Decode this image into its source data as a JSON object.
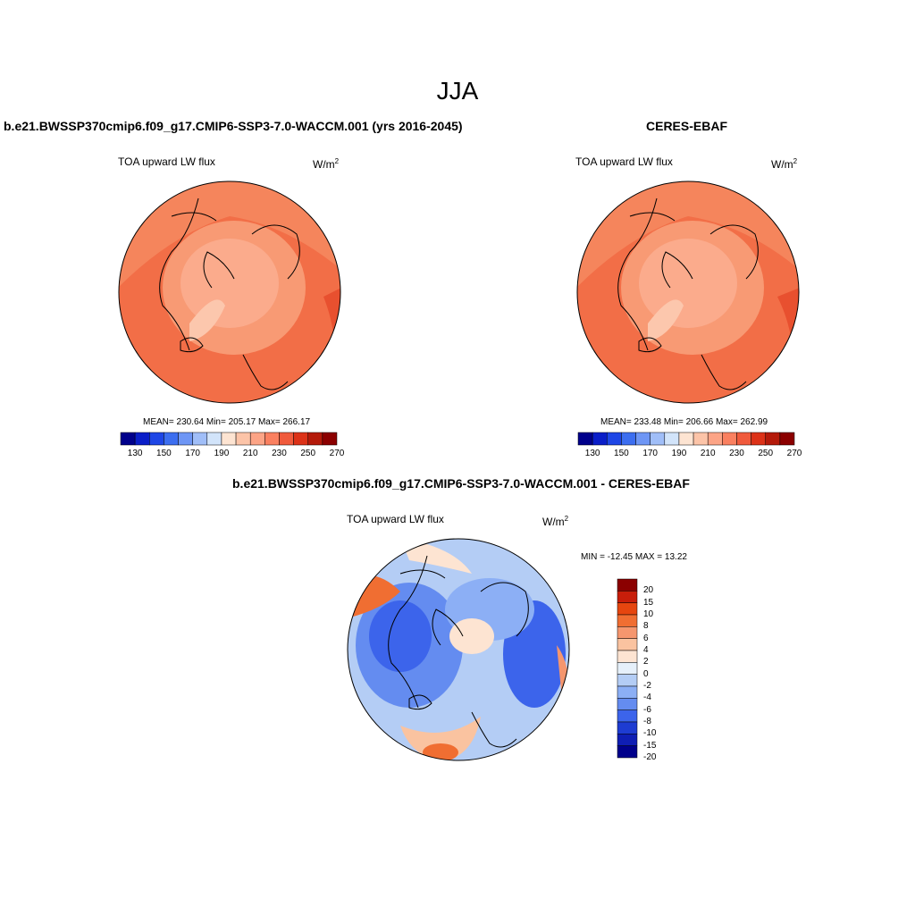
{
  "title": "JJA",
  "panels": [
    {
      "title": "b.e21.BWSSP370cmip6.f09_g17.CMIP6-SSP3-7.0-WACCM.001 (yrs 2016-2045)",
      "var_label": "TOA upward LW flux",
      "units": "W/m",
      "units_sup": "2",
      "stats": "MEAN= 230.64  Min= 205.17  Max= 266.17",
      "mean": 230.64,
      "min": 205.17,
      "max": 266.17
    },
    {
      "title": "CERES-EBAF",
      "var_label": "TOA upward LW flux",
      "units": "W/m",
      "units_sup": "2",
      "stats": "MEAN= 233.48  Min= 206.66  Max= 262.99",
      "mean": 233.48,
      "min": 206.66,
      "max": 262.99
    },
    {
      "title": "b.e21.BWSSP370cmip6.f09_g17.CMIP6-SSP3-7.0-WACCM.001 - CERES-EBAF",
      "var_label": "TOA upward LW flux",
      "units": "W/m",
      "units_sup": "2",
      "stats": "MIN = -12.45 MAX =  13.22",
      "min": -12.45,
      "max": 13.22
    }
  ],
  "abs_colorbar": {
    "tick_labels": [
      "130",
      "150",
      "170",
      "190",
      "210",
      "230",
      "250",
      "270"
    ],
    "colors": [
      "#00008b",
      "#0a1ec8",
      "#1e46e6",
      "#3c6ef0",
      "#6e96f5",
      "#a0bef8",
      "#d2e4fa",
      "#fde4d2",
      "#fcc4a8",
      "#fca486",
      "#fa8060",
      "#f05a3c",
      "#dc3218",
      "#b41a0a",
      "#8b0000"
    ]
  },
  "diff_colorbar": {
    "tick_labels": [
      "20",
      "15",
      "10",
      "8",
      "6",
      "4",
      "2",
      "0",
      "-2",
      "-4",
      "-6",
      "-8",
      "-10",
      "-15",
      "-20"
    ],
    "colors": [
      "#8b0000",
      "#c81e0a",
      "#e6460f",
      "#f06e32",
      "#f5966e",
      "#fac3a0",
      "#fde4d2",
      "#e6f0fa",
      "#b4cdf5",
      "#8caff5",
      "#648cf0",
      "#3c64eb",
      "#1e3cd2",
      "#0f1eb4",
      "#00008b"
    ]
  }
}
